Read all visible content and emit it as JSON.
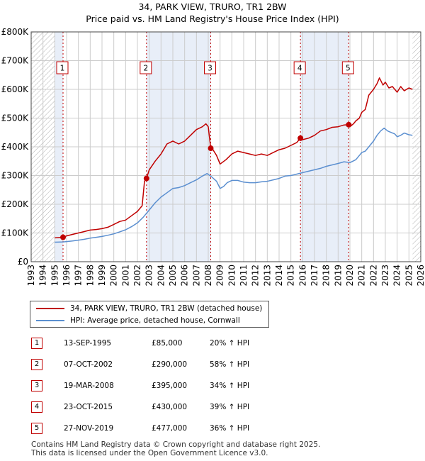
{
  "title_line1": "34, PARK VIEW, TRURO, TR1 2BW",
  "title_line2": "Price paid vs. HM Land Registry's House Price Index (HPI)",
  "colors": {
    "red": "#c00000",
    "blue": "#5b8fd0",
    "grid": "#cccccc",
    "shade": "#e8eef8",
    "hatch": "#b0b0b0"
  },
  "chart_data": {
    "type": "line",
    "title": "34, PARK VIEW, TRURO, TR1 2BW — Price paid vs. HM Land Registry's House Price Index (HPI)",
    "xlabel": "",
    "ylabel": "",
    "xlim": [
      1993,
      2026
    ],
    "ylim": [
      0,
      800000
    ],
    "y_ticks": [
      0,
      100000,
      200000,
      300000,
      400000,
      500000,
      600000,
      700000,
      800000
    ],
    "y_tick_labels": [
      "£0",
      "£100K",
      "£200K",
      "£300K",
      "£400K",
      "£500K",
      "£600K",
      "£700K",
      "£800K"
    ],
    "x_ticks": [
      1993,
      1994,
      1995,
      1996,
      1997,
      1998,
      1999,
      2000,
      2001,
      2002,
      2003,
      2004,
      2005,
      2006,
      2007,
      2008,
      2009,
      2010,
      2011,
      2012,
      2013,
      2014,
      2015,
      2016,
      2017,
      2018,
      2019,
      2020,
      2021,
      2022,
      2023,
      2024,
      2025,
      2026
    ],
    "x_tick_labels": [
      "1993",
      "1994",
      "1995",
      "1996",
      "1997",
      "1998",
      "1999",
      "2000",
      "2001",
      "2002",
      "2003",
      "2004",
      "2005",
      "2006",
      "2007",
      "2008",
      "2009",
      "2010",
      "2011",
      "2012",
      "2013",
      "2014",
      "2015",
      "2016",
      "2017",
      "2018",
      "2019",
      "2020",
      "2021",
      "2022",
      "2023",
      "2024",
      "2025",
      "2026"
    ],
    "grid": true,
    "data_range": [
      1995.0,
      2025.3
    ],
    "series": [
      {
        "name": "34, PARK VIEW, TRURO, TR1 2BW (detached house)",
        "color": "#c00000",
        "x": [
          1995.0,
          1995.7,
          1996.0,
          1996.5,
          1997.0,
          1997.5,
          1998.0,
          1998.5,
          1999.0,
          1999.5,
          2000.0,
          2000.5,
          2001.0,
          2001.5,
          2002.0,
          2002.4,
          2002.6,
          2002.77,
          2003.0,
          2003.5,
          2004.0,
          2004.5,
          2005.0,
          2005.5,
          2006.0,
          2006.5,
          2007.0,
          2007.5,
          2007.8,
          2008.0,
          2008.21,
          2008.4,
          2008.7,
          2009.0,
          2009.5,
          2010.0,
          2010.5,
          2011.0,
          2011.5,
          2012.0,
          2012.5,
          2013.0,
          2013.5,
          2014.0,
          2014.5,
          2015.0,
          2015.5,
          2015.81,
          2016.0,
          2016.5,
          2017.0,
          2017.5,
          2018.0,
          2018.5,
          2019.0,
          2019.5,
          2019.9,
          2020.0,
          2020.3,
          2020.5,
          2020.8,
          2021.0,
          2021.3,
          2021.6,
          2022.0,
          2022.3,
          2022.5,
          2022.8,
          2023.0,
          2023.3,
          2023.6,
          2024.0,
          2024.3,
          2024.6,
          2025.0,
          2025.3
        ],
        "values": [
          83000,
          85000,
          90000,
          95000,
          100000,
          105000,
          110000,
          112000,
          115000,
          120000,
          130000,
          140000,
          145000,
          160000,
          175000,
          195000,
          280000,
          290000,
          320000,
          350000,
          375000,
          410000,
          420000,
          410000,
          420000,
          440000,
          460000,
          470000,
          480000,
          470000,
          395000,
          390000,
          370000,
          340000,
          355000,
          375000,
          385000,
          380000,
          375000,
          370000,
          375000,
          370000,
          380000,
          390000,
          395000,
          405000,
          415000,
          430000,
          425000,
          430000,
          440000,
          455000,
          460000,
          468000,
          470000,
          476000,
          477000,
          470000,
          480000,
          490000,
          500000,
          520000,
          530000,
          580000,
          600000,
          620000,
          640000,
          615000,
          625000,
          605000,
          610000,
          590000,
          610000,
          595000,
          605000,
          600000
        ]
      },
      {
        "name": "HPI: Average price, detached house, Cornwall",
        "color": "#5b8fd0",
        "x": [
          1995.0,
          1995.7,
          1996.0,
          1996.5,
          1997.0,
          1997.5,
          1998.0,
          1998.5,
          1999.0,
          1999.5,
          2000.0,
          2000.5,
          2001.0,
          2001.5,
          2002.0,
          2002.5,
          2003.0,
          2003.5,
          2004.0,
          2004.5,
          2005.0,
          2005.5,
          2006.0,
          2006.5,
          2007.0,
          2007.5,
          2007.9,
          2008.3,
          2008.7,
          2009.0,
          2009.3,
          2009.6,
          2010.0,
          2010.5,
          2011.0,
          2011.5,
          2012.0,
          2012.5,
          2013.0,
          2013.5,
          2014.0,
          2014.5,
          2015.0,
          2015.5,
          2016.0,
          2016.5,
          2017.0,
          2017.5,
          2018.0,
          2018.5,
          2019.0,
          2019.5,
          2020.0,
          2020.5,
          2020.8,
          2021.0,
          2021.3,
          2021.6,
          2022.0,
          2022.3,
          2022.6,
          2022.9,
          2023.2,
          2023.5,
          2023.8,
          2024.0,
          2024.3,
          2024.6,
          2025.0,
          2025.3
        ],
        "values": [
          68000,
          69000,
          70000,
          72000,
          75000,
          78000,
          82000,
          85000,
          88000,
          92000,
          97000,
          104000,
          111000,
          122000,
          135000,
          155000,
          180000,
          205000,
          225000,
          240000,
          255000,
          258000,
          265000,
          275000,
          285000,
          298000,
          307000,
          295000,
          280000,
          255000,
          262000,
          275000,
          283000,
          283000,
          277000,
          275000,
          275000,
          278000,
          280000,
          285000,
          290000,
          298000,
          300000,
          305000,
          310000,
          315000,
          320000,
          325000,
          332000,
          337000,
          342000,
          348000,
          345000,
          355000,
          370000,
          380000,
          385000,
          400000,
          420000,
          440000,
          455000,
          465000,
          455000,
          450000,
          445000,
          435000,
          440000,
          448000,
          442000,
          440000
        ]
      }
    ],
    "sales": [
      {
        "label": "1",
        "x": 1995.7,
        "value": 85000
      },
      {
        "label": "2",
        "x": 2002.77,
        "value": 290000
      },
      {
        "label": "3",
        "x": 2008.21,
        "value": 395000
      },
      {
        "label": "4",
        "x": 2015.81,
        "value": 430000
      },
      {
        "label": "5",
        "x": 2019.9,
        "value": 477000
      }
    ]
  },
  "legend": {
    "red_label": "34, PARK VIEW, TRURO, TR1 2BW (detached house)",
    "blue_label": "HPI: Average price, detached house, Cornwall"
  },
  "transactions": [
    {
      "num": "1",
      "date": "13-SEP-1995",
      "price": "£85,000",
      "hpi": "20% ↑ HPI"
    },
    {
      "num": "2",
      "date": "07-OCT-2002",
      "price": "£290,000",
      "hpi": "58% ↑ HPI"
    },
    {
      "num": "3",
      "date": "19-MAR-2008",
      "price": "£395,000",
      "hpi": "34% ↑ HPI"
    },
    {
      "num": "4",
      "date": "23-OCT-2015",
      "price": "£430,000",
      "hpi": "39% ↑ HPI"
    },
    {
      "num": "5",
      "date": "27-NOV-2019",
      "price": "£477,000",
      "hpi": "36% ↑ HPI"
    }
  ],
  "footer_line1": "Contains HM Land Registry data © Crown copyright and database right 2025.",
  "footer_line2": "This data is licensed under the Open Government Licence v3.0."
}
